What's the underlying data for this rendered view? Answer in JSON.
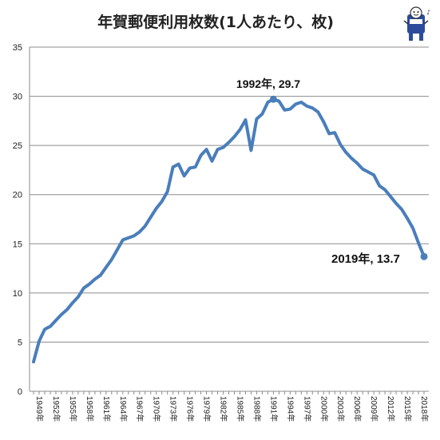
{
  "chart_data": {
    "type": "line",
    "title": "年賀郵便利用枚数(1人あたり、枚)",
    "xlabel": "",
    "ylabel": "",
    "ylim": [
      0,
      35
    ],
    "yticks": [
      0,
      5,
      10,
      15,
      20,
      25,
      30,
      35
    ],
    "grid": "horizontal",
    "legend": "none",
    "series_color": "#4a7ebb",
    "x_tick_labels": [
      "1949年",
      "1952年",
      "1955年",
      "1958年",
      "1961年",
      "1964年",
      "1967年",
      "1970年",
      "1973年",
      "1976年",
      "1979年",
      "1982年",
      "1985年",
      "1988年",
      "1991年",
      "1994年",
      "1997年",
      "2000年",
      "2003年",
      "2006年",
      "2009年",
      "2012年",
      "2015年",
      "2018年"
    ],
    "x": [
      1949,
      1950,
      1951,
      1952,
      1953,
      1954,
      1955,
      1956,
      1957,
      1958,
      1959,
      1960,
      1961,
      1962,
      1963,
      1964,
      1965,
      1966,
      1967,
      1968,
      1969,
      1970,
      1971,
      1972,
      1973,
      1974,
      1975,
      1976,
      1977,
      1978,
      1979,
      1980,
      1981,
      1982,
      1983,
      1984,
      1985,
      1986,
      1987,
      1988,
      1989,
      1990,
      1991,
      1992,
      1993,
      1994,
      1995,
      1996,
      1997,
      1998,
      1999,
      2000,
      2001,
      2002,
      2003,
      2004,
      2005,
      2006,
      2007,
      2008,
      2009,
      2010,
      2011,
      2012,
      2013,
      2014,
      2015,
      2016,
      2017,
      2018,
      2019
    ],
    "series": [
      {
        "values": [
          3.0,
          5.1,
          6.3,
          6.6,
          7.2,
          7.8,
          8.3,
          9.0,
          9.6,
          10.5,
          10.9,
          11.4,
          11.8,
          12.6,
          13.4,
          14.4,
          15.4,
          15.6,
          15.8,
          16.2,
          16.8,
          17.7,
          18.6,
          19.3,
          20.3,
          22.8,
          23.1,
          21.9,
          22.7,
          22.8,
          24.0,
          24.6,
          23.4,
          24.6,
          24.8,
          25.3,
          25.9,
          26.6,
          27.6,
          24.5,
          27.7,
          28.2,
          29.4,
          29.7,
          29.5,
          28.6,
          28.7,
          29.2,
          29.4,
          29.0,
          28.8,
          28.4,
          27.4,
          26.2,
          26.3,
          25.1,
          24.3,
          23.7,
          23.2,
          22.6,
          22.3,
          22.0,
          20.9,
          20.5,
          19.8,
          19.1,
          18.5,
          17.6,
          16.6,
          15.1,
          13.7
        ]
      }
    ],
    "annotations": [
      {
        "text": "1992年, 29.7",
        "x": 1992,
        "y": 29.7
      },
      {
        "text": "2019年, 13.7",
        "x": 2019,
        "y": 13.7
      }
    ]
  },
  "mascot": {
    "name": "mascot-icon"
  }
}
